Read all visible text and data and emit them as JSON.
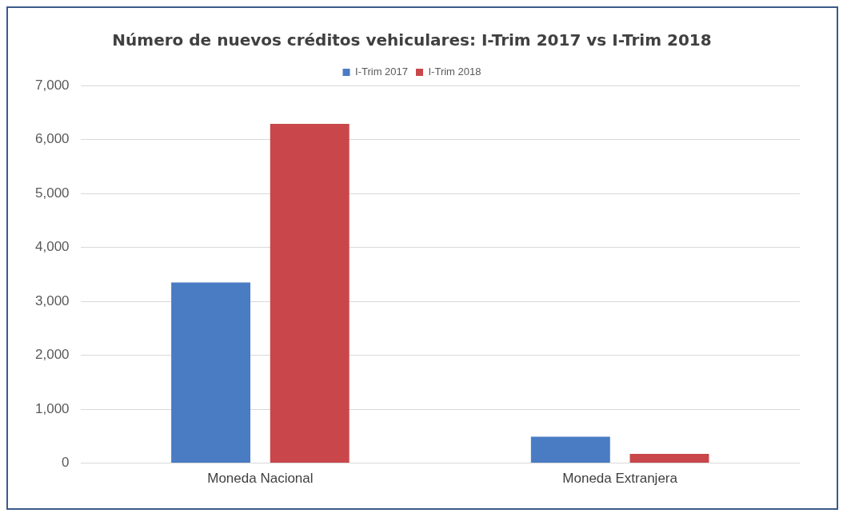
{
  "chart_data": {
    "type": "bar",
    "title": "Número de nuevos créditos vehiculares: I-Trim 2017 vs I-Trim 2018",
    "categories": [
      "Moneda Nacional",
      "Moneda Extranjera"
    ],
    "series": [
      {
        "name": "I-Trim 2017",
        "color": "#4a7cc4",
        "values": [
          3350,
          490
        ]
      },
      {
        "name": "I-Trim 2018",
        "color": "#c9474a",
        "values": [
          6290,
          170
        ]
      }
    ],
    "ylim": [
      0,
      7000
    ],
    "yticks": [
      {
        "value": 0,
        "label": "0"
      },
      {
        "value": 1000,
        "label": "1,000"
      },
      {
        "value": 2000,
        "label": "2,000"
      },
      {
        "value": 3000,
        "label": "3,000"
      },
      {
        "value": 4000,
        "label": "4,000"
      },
      {
        "value": 5000,
        "label": "5,000"
      },
      {
        "value": 6000,
        "label": "6,000"
      },
      {
        "value": 7000,
        "label": "7,000"
      }
    ],
    "grid": "y",
    "legend": "top"
  }
}
